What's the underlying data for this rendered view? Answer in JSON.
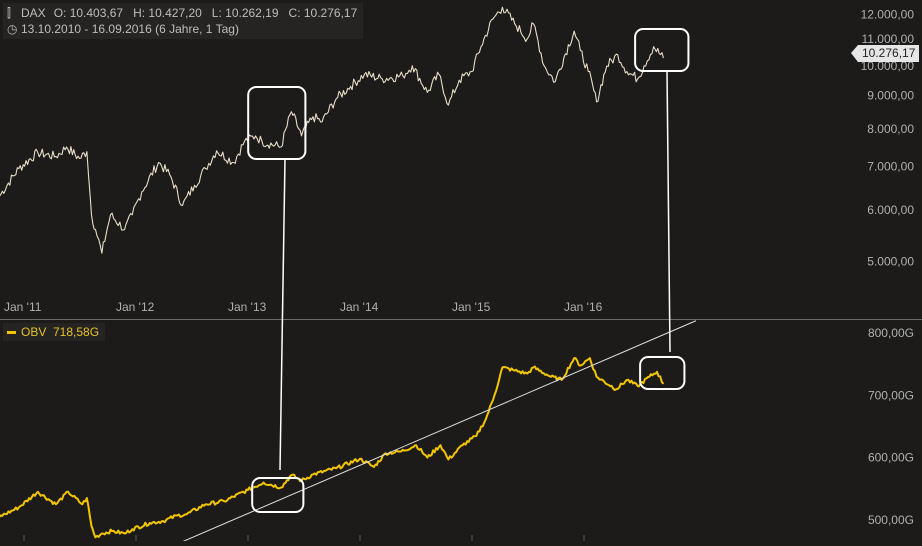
{
  "header": {
    "symbol_icon": "candlestick-icon",
    "symbol": "DAX",
    "ohlc": "O: 10.403,67   H: 10.427,20   L: 10.262,19   C: 10.276,17",
    "range_icon": "clock-icon",
    "range": "13.10.2010 - 16.09.2016 (6 Jahre, 1 Tag)"
  },
  "last_price_label": "10.276,17",
  "obv_legend": "OBV  718,58G",
  "colors": {
    "background": "#1c1b1a",
    "price_line": "#e8ddc8",
    "obv_line": "#f2c500",
    "trendline": "#e0e0e0",
    "highlight_box": "#ffffff",
    "axis_text": "#b0b0b0"
  },
  "chart_data": [
    {
      "type": "line",
      "title": "",
      "series": [
        {
          "name": "DAX",
          "x": [
            "2010-10-13",
            "2010-12-15",
            "2011-02-15",
            "2011-04-15",
            "2011-05-20",
            "2011-07-01",
            "2011-07-25",
            "2011-08-09",
            "2011-08-22",
            "2011-09-12",
            "2011-10-10",
            "2011-11-25",
            "2011-12-20",
            "2012-01-20",
            "2012-03-15",
            "2012-04-20",
            "2012-06-01",
            "2012-07-10",
            "2012-08-15",
            "2012-09-20",
            "2012-11-15",
            "2012-12-20",
            "2013-01-25",
            "2013-02-15",
            "2013-04-18",
            "2013-05-22",
            "2013-06-24",
            "2013-07-31",
            "2013-08-30",
            "2013-10-15",
            "2013-12-01",
            "2014-01-15",
            "2014-03-14",
            "2014-05-20",
            "2014-06-20",
            "2014-08-08",
            "2014-09-15",
            "2014-10-16",
            "2014-11-20",
            "2014-12-31",
            "2015-01-30",
            "2015-03-10",
            "2015-04-10",
            "2015-05-20",
            "2015-06-30",
            "2015-07-20",
            "2015-08-24",
            "2015-09-29",
            "2015-11-30",
            "2015-12-20",
            "2016-01-15",
            "2016-02-11",
            "2016-03-15",
            "2016-04-20",
            "2016-05-20",
            "2016-06-24",
            "2016-07-15",
            "2016-08-15",
            "2016-09-16"
          ],
          "values": [
            6300,
            6950,
            7350,
            7250,
            7500,
            7200,
            7380,
            5900,
            5600,
            5150,
            5900,
            5600,
            5900,
            6400,
            7100,
            6800,
            6100,
            6550,
            6950,
            7400,
            7100,
            7650,
            7800,
            7650,
            7500,
            8500,
            7800,
            8350,
            8200,
            8900,
            9300,
            9700,
            9550,
            9650,
            10000,
            9100,
            9700,
            8700,
            9500,
            9800,
            10700,
            11800,
            12300,
            11600,
            11000,
            11600,
            10000,
            9450,
            11300,
            10550,
            9800,
            8800,
            9990,
            10400,
            9800,
            9550,
            10000,
            10700,
            10276
          ]
        }
      ],
      "xlabel": "",
      "ylabel": "",
      "x_ticks": [
        "Jan '11",
        "Jan '12",
        "Jan '13",
        "Jan '14",
        "Jan '15",
        "Jan '16"
      ],
      "y_ticks": [
        "5.000,00",
        "6.000,00",
        "7.000,00",
        "8.000,00",
        "9.000,00",
        "10.000,00",
        "11.000,00",
        "12.000,00"
      ],
      "y_scale": "log",
      "ylim": [
        4700,
        12400
      ],
      "grid": false,
      "last_value": "10.276,17",
      "highlight_periods": [
        [
          "2013-01-01",
          "2013-06-30"
        ],
        [
          "2016-07-15",
          "2016-09-16"
        ]
      ]
    },
    {
      "type": "line",
      "title": "",
      "series": [
        {
          "name": "OBV",
          "x": [
            "2010-10-13",
            "2010-12-15",
            "2011-02-15",
            "2011-04-15",
            "2011-05-25",
            "2011-07-10",
            "2011-07-25",
            "2011-08-09",
            "2011-08-22",
            "2011-09-12",
            "2011-10-15",
            "2011-11-25",
            "2011-12-20",
            "2012-02-15",
            "2012-03-30",
            "2012-05-15",
            "2012-06-15",
            "2012-08-15",
            "2012-10-15",
            "2012-12-31",
            "2013-02-20",
            "2013-04-18",
            "2013-05-22",
            "2013-06-24",
            "2013-08-01",
            "2013-10-15",
            "2013-12-31",
            "2014-02-15",
            "2014-03-25",
            "2014-05-15",
            "2014-07-03",
            "2014-08-08",
            "2014-09-20",
            "2014-10-16",
            "2014-12-01",
            "2015-01-15",
            "2015-02-15",
            "2015-03-15",
            "2015-04-10",
            "2015-05-20",
            "2015-06-30",
            "2015-07-20",
            "2015-09-15",
            "2015-10-20",
            "2015-11-30",
            "2015-12-20",
            "2016-01-20",
            "2016-02-11",
            "2016-04-15",
            "2016-05-20",
            "2016-06-24",
            "2016-08-01",
            "2016-08-26",
            "2016-09-16"
          ],
          "values": [
            505,
            520,
            545,
            525,
            545,
            525,
            535,
            490,
            472,
            478,
            482,
            478,
            485,
            495,
            498,
            507,
            509,
            525,
            530,
            548,
            560,
            552,
            572,
            563,
            573,
            583,
            598,
            585,
            607,
            610,
            620,
            600,
            620,
            597,
            620,
            635,
            662,
            700,
            745,
            740,
            735,
            745,
            730,
            725,
            760,
            748,
            760,
            730,
            710,
            725,
            715,
            730,
            738,
            718.58
          ]
        }
      ],
      "xlabel": "",
      "ylabel": "",
      "y_ticks": [
        "500,00G",
        "600,00G",
        "700,00G",
        "800,00G"
      ],
      "ylim": [
        466,
        818
      ],
      "grid": false,
      "last_value": "718,58G",
      "trendline": {
        "from": [
          "2012-06-01",
          465
        ],
        "to": [
          "2016-12-31",
          820
        ]
      },
      "highlight_periods": [
        [
          "2013-01-01",
          "2013-06-30"
        ],
        [
          "2016-07-15",
          "2016-09-16"
        ]
      ]
    }
  ]
}
